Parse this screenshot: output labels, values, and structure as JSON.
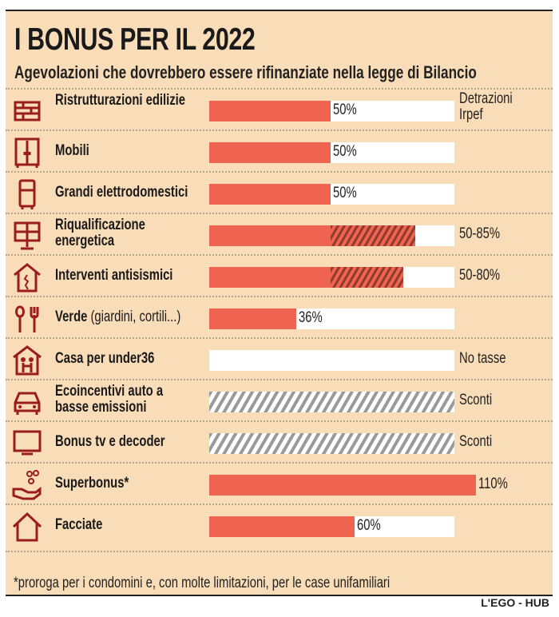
{
  "title": "I BONUS PER IL 2022",
  "subtitle": "Agevolazioni che dovrebbero essere rifinanziate nella legge di Bilancio",
  "footnote": "*proroga per i condomini e, con molte limitazioni, per le case unifamiliari",
  "credit": "L'EGO - HUB",
  "colors": {
    "bar": "#ef6450",
    "icon": "#9b1c1c",
    "background": "#f9dcb8"
  },
  "chart_data": {
    "type": "bar",
    "title": "I BONUS PER IL 2022",
    "subtitle": "Agevolazioni che dovrebbero essere rifinanziate nella legge di Bilancio",
    "xlim": [
      0,
      100
    ],
    "unit": "%",
    "rows": [
      {
        "label": "Ristrutturazioni edilizie",
        "extra": "",
        "icon": "bricks-icon",
        "min": 50,
        "max": 50,
        "value_label": "50%",
        "note": "Detrazioni Irpef",
        "kind": "solid"
      },
      {
        "label": "Mobili",
        "extra": "",
        "icon": "cabinet-icon",
        "min": 50,
        "max": 50,
        "value_label": "50%",
        "note": "",
        "kind": "solid"
      },
      {
        "label": "Grandi elettrodomestici",
        "extra": "",
        "icon": "fridge-icon",
        "min": 50,
        "max": 50,
        "value_label": "50%",
        "note": "",
        "kind": "solid"
      },
      {
        "label": "Riqualificazione energetica",
        "extra": "",
        "icon": "solar-panel-icon",
        "min": 50,
        "max": 85,
        "value_label": "",
        "note": "50-85%",
        "kind": "range"
      },
      {
        "label": "Interventi antisismici",
        "extra": "",
        "icon": "earthquake-house-icon",
        "min": 50,
        "max": 80,
        "value_label": "",
        "note": "50-80%",
        "kind": "range"
      },
      {
        "label": "Verde",
        "extra": "(giardini, cortili...)",
        "icon": "garden-tools-icon",
        "min": 36,
        "max": 36,
        "value_label": "36%",
        "note": "",
        "kind": "solid"
      },
      {
        "label": "Casa per under36",
        "extra": "",
        "icon": "family-house-icon",
        "min": 0,
        "max": 0,
        "value_label": "",
        "note": "No tasse",
        "kind": "empty"
      },
      {
        "label": "Ecoincentivi auto a basse emissioni",
        "extra": "",
        "icon": "car-icon",
        "min": 0,
        "max": 0,
        "value_label": "",
        "note": "Sconti",
        "kind": "grey"
      },
      {
        "label": "Bonus tv e decoder",
        "extra": "",
        "icon": "tv-icon",
        "min": 0,
        "max": 0,
        "value_label": "",
        "note": "Sconti",
        "kind": "grey"
      },
      {
        "label": "Superbonus*",
        "extra": "",
        "icon": "hand-coins-icon",
        "min": 110,
        "max": 110,
        "value_label": "110%",
        "note": "",
        "kind": "over"
      },
      {
        "label": "Facciate",
        "extra": "",
        "icon": "house-icon",
        "min": 60,
        "max": 60,
        "value_label": "60%",
        "note": "",
        "kind": "solid"
      }
    ]
  }
}
